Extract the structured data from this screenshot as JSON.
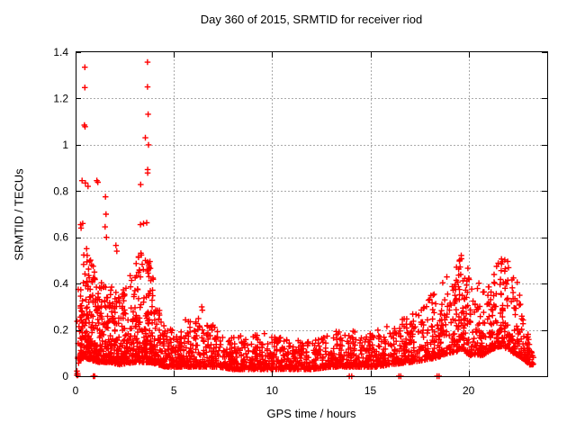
{
  "chart": {
    "title": "Day 360 of 2015, SRMTID for receiver riod",
    "xlabel": "GPS time / hours",
    "ylabel": "SRMTID / TECUs"
  },
  "chart_data": {
    "type": "scatter",
    "title": "Day 360 of 2015, SRMTID for receiver riod",
    "xlabel": "GPS time / hours",
    "ylabel": "SRMTID / TECUs",
    "xlim": [
      0,
      24
    ],
    "ylim": [
      0,
      1.4
    ],
    "xticks": [
      0,
      5,
      10,
      15,
      20
    ],
    "xtick_labels": [
      "0",
      "5",
      "10",
      "15",
      "20"
    ],
    "yticks": [
      0,
      0.2,
      0.4,
      0.6,
      0.8,
      1,
      1.2,
      1.4
    ],
    "ytick_labels": [
      "0",
      "0.2",
      "0.4",
      "0.6",
      "0.8",
      "1",
      "1.2",
      "1.4"
    ],
    "grid": true,
    "legend": false,
    "marker": "plus",
    "marker_color": "#ff0000",
    "grid_color": "#a9a9a9",
    "axis_color": "#000000",
    "series_name": "SRMTID",
    "outliers": [
      [
        0.47,
        1.335
      ],
      [
        0.47,
        1.247
      ],
      [
        0.45,
        1.085
      ],
      [
        0.48,
        1.078
      ],
      [
        0.33,
        0.845
      ],
      [
        0.5,
        0.835
      ],
      [
        0.63,
        0.82
      ],
      [
        1.08,
        0.845
      ],
      [
        1.13,
        0.838
      ],
      [
        0.25,
        0.655
      ],
      [
        0.28,
        0.64
      ],
      [
        0.36,
        0.66
      ],
      [
        1.52,
        0.775
      ],
      [
        1.55,
        0.7
      ],
      [
        1.5,
        0.645
      ],
      [
        1.57,
        0.6
      ],
      [
        3.66,
        1.357
      ],
      [
        3.66,
        1.25
      ],
      [
        3.69,
        1.132
      ],
      [
        3.55,
        1.03
      ],
      [
        3.71,
        1.0
      ],
      [
        3.67,
        0.893
      ],
      [
        3.67,
        0.878
      ],
      [
        3.31,
        0.828
      ],
      [
        3.3,
        0.655
      ],
      [
        3.46,
        0.66
      ],
      [
        3.62,
        0.663
      ],
      [
        2.05,
        0.565
      ],
      [
        2.1,
        0.54
      ],
      [
        6.42,
        0.3
      ],
      [
        6.45,
        0.285
      ]
    ],
    "zero_points": [
      [
        0.07,
        0.004
      ],
      [
        0.09,
        0.004
      ],
      [
        0.08,
        0.012
      ],
      [
        0.1,
        0.012
      ],
      [
        0.11,
        0.004
      ],
      [
        0.9,
        0.0
      ],
      [
        0.97,
        0.0
      ],
      [
        13.93,
        0.0
      ],
      [
        14.05,
        0.0
      ],
      [
        16.45,
        0.0
      ],
      [
        16.55,
        0.0
      ],
      [
        18.4,
        0.0
      ],
      [
        18.5,
        0.0
      ]
    ],
    "band_envelope": {
      "description": "Dense band of SRMTID samples; control points are [hour, ymin, ymax, points_per_hour] for each segment start.",
      "skew": 2.2,
      "seed": 1337,
      "epoch_step_hours": 0.008333,
      "control_points": [
        [
          0.05,
          0.0,
          0.35,
          60
        ],
        [
          0.2,
          0.07,
          0.5,
          210
        ],
        [
          0.45,
          0.08,
          0.58,
          230
        ],
        [
          0.8,
          0.07,
          0.5,
          210
        ],
        [
          1.2,
          0.06,
          0.4,
          180
        ],
        [
          1.5,
          0.06,
          0.46,
          180
        ],
        [
          1.8,
          0.06,
          0.4,
          170
        ],
        [
          2.2,
          0.05,
          0.34,
          150
        ],
        [
          3.0,
          0.06,
          0.48,
          180
        ],
        [
          3.4,
          0.06,
          0.56,
          200
        ],
        [
          3.8,
          0.06,
          0.5,
          190
        ],
        [
          4.2,
          0.05,
          0.32,
          150
        ],
        [
          4.6,
          0.04,
          0.2,
          120
        ],
        [
          5.0,
          0.04,
          0.21,
          110
        ],
        [
          6.0,
          0.04,
          0.27,
          110
        ],
        [
          6.6,
          0.04,
          0.23,
          105
        ],
        [
          7.3,
          0.04,
          0.22,
          100
        ],
        [
          8.0,
          0.03,
          0.17,
          95
        ],
        [
          9.0,
          0.03,
          0.19,
          95
        ],
        [
          10.0,
          0.03,
          0.18,
          92
        ],
        [
          11.0,
          0.03,
          0.16,
          90
        ],
        [
          12.0,
          0.03,
          0.15,
          90
        ],
        [
          13.0,
          0.04,
          0.18,
          95
        ],
        [
          13.8,
          0.04,
          0.22,
          95
        ],
        [
          14.5,
          0.04,
          0.17,
          95
        ],
        [
          15.3,
          0.04,
          0.2,
          95
        ],
        [
          16.0,
          0.05,
          0.23,
          100
        ],
        [
          17.0,
          0.06,
          0.26,
          100
        ],
        [
          17.8,
          0.07,
          0.32,
          105
        ],
        [
          18.4,
          0.08,
          0.4,
          110
        ],
        [
          19.0,
          0.1,
          0.44,
          120
        ],
        [
          19.7,
          0.11,
          0.56,
          130
        ],
        [
          20.1,
          0.09,
          0.47,
          120
        ],
        [
          20.7,
          0.09,
          0.38,
          110
        ],
        [
          21.3,
          0.12,
          0.45,
          115
        ],
        [
          21.7,
          0.13,
          0.56,
          125
        ],
        [
          22.1,
          0.11,
          0.48,
          115
        ],
        [
          22.5,
          0.09,
          0.42,
          105
        ],
        [
          22.85,
          0.07,
          0.25,
          95
        ],
        [
          23.1,
          0.05,
          0.15,
          70
        ],
        [
          23.3,
          0.05,
          0.1,
          0
        ]
      ]
    }
  }
}
